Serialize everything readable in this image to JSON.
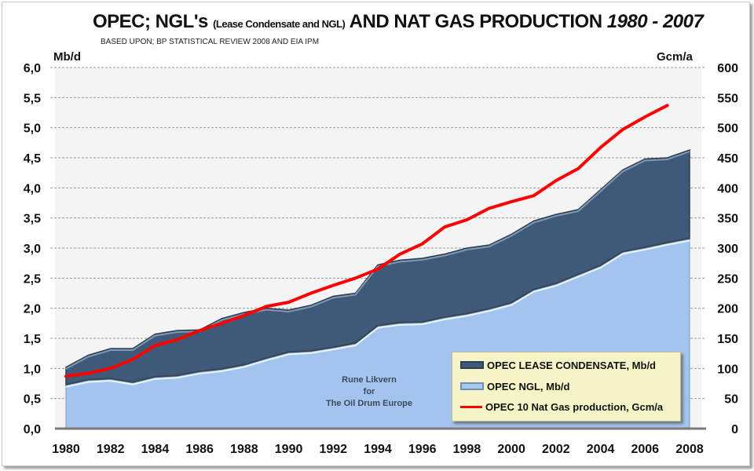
{
  "chart_data": {
    "type": "area",
    "title": {
      "part1": "OPEC; NGL's",
      "part2": "(Lease Condensate and NGL)",
      "part3": "AND NAT GAS PRODUCTION",
      "part4": "1980 - 2007"
    },
    "subtitle": "BASED UPON; BP STATISTICAL REVIEW 2008 AND EIA IPM",
    "ylabel_left": "Mb/d",
    "ylabel_right": "Gcm/a",
    "ylim_left": [
      0,
      6
    ],
    "ylim_right": [
      0,
      600
    ],
    "yticks_left": [
      "0,0",
      "0,5",
      "1,0",
      "1,5",
      "2,0",
      "2,5",
      "3,0",
      "3,5",
      "4,0",
      "4,5",
      "5,0",
      "5,5",
      "6,0"
    ],
    "yticks_right": [
      "0",
      "50",
      "100",
      "150",
      "200",
      "250",
      "300",
      "350",
      "400",
      "450",
      "500",
      "550",
      "600"
    ],
    "xticks": [
      "1980",
      "1982",
      "1984",
      "1986",
      "1988",
      "1990",
      "1992",
      "1994",
      "1996",
      "1998",
      "2000",
      "2002",
      "2004",
      "2006",
      "2008"
    ],
    "grid": true,
    "x": [
      1980,
      1981,
      1982,
      1983,
      1984,
      1985,
      1986,
      1987,
      1988,
      1989,
      1990,
      1991,
      1992,
      1993,
      1994,
      1995,
      1996,
      1997,
      1998,
      1999,
      2000,
      2001,
      2002,
      2003,
      2004,
      2005,
      2006,
      2007,
      2008
    ],
    "series": [
      {
        "name": "OPEC NGL, Mb/d",
        "kind": "stacked-area",
        "axis": "left",
        "color": "#a3c4ef",
        "values": [
          0.72,
          0.8,
          0.82,
          0.76,
          0.85,
          0.87,
          0.94,
          0.98,
          1.05,
          1.16,
          1.26,
          1.28,
          1.34,
          1.41,
          1.7,
          1.75,
          1.76,
          1.84,
          1.9,
          1.98,
          2.08,
          2.3,
          2.4,
          2.55,
          2.7,
          2.93,
          3.0,
          3.08,
          3.15
        ]
      },
      {
        "name": "OPEC LEASE CONDENSATE, Mb/d",
        "kind": "stacked-area",
        "axis": "left",
        "color": "#3f5a78",
        "values": [
          0.3,
          0.42,
          0.51,
          0.57,
          0.72,
          0.76,
          0.7,
          0.85,
          0.88,
          0.84,
          0.71,
          0.77,
          0.86,
          0.84,
          1.02,
          1.05,
          1.07,
          1.06,
          1.1,
          1.07,
          1.15,
          1.15,
          1.16,
          1.09,
          1.27,
          1.37,
          1.48,
          1.42,
          1.48
        ]
      },
      {
        "name": "OPEC 10 Nat Gas production, Gcm/a",
        "kind": "line",
        "axis": "right",
        "color": "#ff0000",
        "values": [
          87,
          92,
          100,
          115,
          138,
          148,
          163,
          175,
          188,
          203,
          210,
          225,
          238,
          250,
          265,
          290,
          307,
          335,
          347,
          366,
          377,
          387,
          412,
          432,
          467,
          497,
          518,
          537,
          null
        ]
      }
    ],
    "legend": {
      "placement": "bottom-right",
      "items": [
        "OPEC LEASE CONDENSATE, Mb/d",
        "OPEC NGL, Mb/d",
        "OPEC 10 Nat Gas production, Gcm/a"
      ]
    },
    "annotation": [
      "Rune Likvern",
      "for",
      "The Oil Drum Europe"
    ]
  }
}
